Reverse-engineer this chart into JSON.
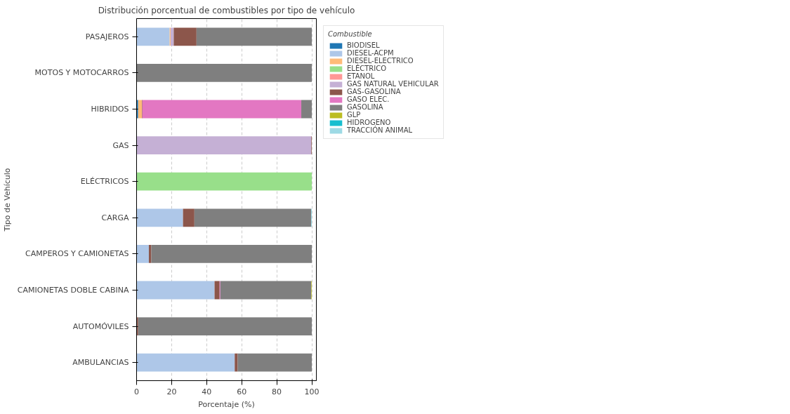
{
  "chart_data": {
    "type": "bar",
    "orientation": "horizontal",
    "stacked": true,
    "title": "Distribución porcentual de combustibles por tipo de vehículo",
    "xlabel": "Porcentaje (%)",
    "ylabel": "Tipo de Vehículo",
    "legend_title": "Combustible",
    "categories": [
      "PASAJEROS",
      "MOTOS Y MOTOCARROS",
      "HIBRIDOS",
      "GAS",
      "ELÉCTRICOS",
      "CARGA",
      "CAMPEROS Y CAMIONETAS",
      "CAMIONETAS DOBLE CABINA",
      "AUTOMÓVILES",
      "AMBULANCIAS"
    ],
    "series": [
      {
        "name": "BIODISEL",
        "color": "#1f77b4",
        "values": [
          0,
          0,
          0.9,
          0,
          0,
          0,
          0,
          0,
          0,
          0
        ]
      },
      {
        "name": "DIESEL-ACPM",
        "color": "#aec7e8",
        "values": [
          18.9,
          0,
          0,
          0,
          0,
          26.5,
          7.0,
          44.5,
          0,
          56.0
        ]
      },
      {
        "name": "DIESEL-ELECTRICO",
        "color": "#ffbb78",
        "values": [
          0.5,
          0,
          2.1,
          0,
          0,
          0,
          0,
          0,
          0,
          0
        ]
      },
      {
        "name": "ELÉCTRICO",
        "color": "#98df8a",
        "values": [
          0,
          0,
          0,
          0,
          100,
          0,
          0,
          0,
          0,
          0
        ]
      },
      {
        "name": "ETANOL",
        "color": "#ff9896",
        "values": [
          0,
          0,
          0,
          0,
          0,
          0,
          0,
          0,
          0,
          0
        ]
      },
      {
        "name": "GAS NATURAL VEHICULAR",
        "color": "#c5b0d5",
        "values": [
          1.8,
          0,
          0,
          99.7,
          0,
          0,
          0,
          0,
          0,
          0
        ]
      },
      {
        "name": "GAS-GASOLINA",
        "color": "#8c564b",
        "values": [
          13.0,
          0,
          0.3,
          0.3,
          0,
          6.5,
          1.4,
          2.9,
          0.9,
          1.7
        ]
      },
      {
        "name": "GASO ELEC.",
        "color": "#e377c2",
        "values": [
          0,
          0,
          90.7,
          0,
          0,
          0,
          0,
          0.4,
          0,
          0
        ]
      },
      {
        "name": "GASOLINA",
        "color": "#7f7f7f",
        "values": [
          65.8,
          100,
          6.0,
          0,
          0,
          66.6,
          91.6,
          51.9,
          99.1,
          42.3
        ]
      },
      {
        "name": "GLP",
        "color": "#bcbd22",
        "values": [
          0,
          0,
          0,
          0,
          0,
          0,
          0,
          0.3,
          0,
          0
        ]
      },
      {
        "name": "HIDROGENO",
        "color": "#17becf",
        "values": [
          0,
          0,
          0,
          0,
          0,
          0,
          0,
          0,
          0,
          0
        ]
      },
      {
        "name": "TRACCIÓN ANIMAL",
        "color": "#9edae5",
        "values": [
          0,
          0,
          0,
          0,
          0,
          0.4,
          0,
          0,
          0,
          0
        ]
      }
    ],
    "xlim": [
      0,
      102.6
    ],
    "xticks": [
      0,
      20,
      40,
      60,
      80,
      100
    ],
    "grid": "x",
    "legend": "top right"
  }
}
